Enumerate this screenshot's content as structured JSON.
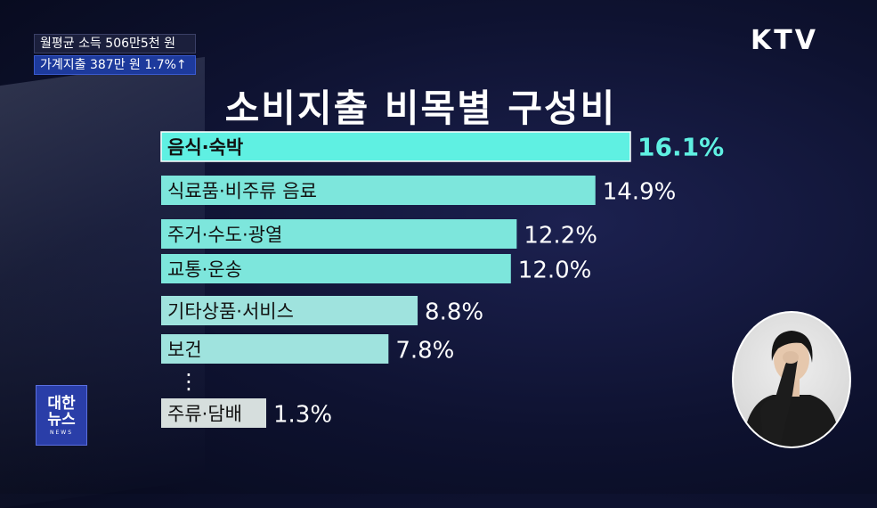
{
  "headline": {
    "line1": "월평균 소득 506만5천 원",
    "line2": "가계지출 387만 원 1.7%↑"
  },
  "broadcaster": "KTV",
  "news_badge": {
    "line1": "대한",
    "line2": "뉴스",
    "line3": "NEWS"
  },
  "colors": {
    "highlight_bar": "#5ff0e2",
    "bar": "#7de6dc",
    "bar_light": "#9fe3de",
    "bar_grey": "#d6dedd",
    "highlight_value": "#5ff0e2",
    "value": "#ffffff"
  },
  "chart_data": {
    "type": "bar",
    "orientation": "horizontal",
    "title": "소비지출 비목별 구성비",
    "categories": [
      "음식·숙박",
      "식료품·비주류 음료",
      "주거·수도·광열",
      "교통·운송",
      "기타상품·서비스",
      "보건",
      "주류·담배"
    ],
    "values": [
      16.1,
      14.9,
      12.2,
      12.0,
      8.8,
      7.8,
      1.3
    ],
    "value_labels": [
      "16.1%",
      "14.9%",
      "12.2%",
      "12.0%",
      "8.8%",
      "7.8%",
      "1.3%"
    ],
    "highlighted_index": 0,
    "ellipsis_before_index": 6,
    "ellipsis": "⋮",
    "xlim": [
      0,
      16.1
    ],
    "grid": false,
    "legend": "none"
  }
}
